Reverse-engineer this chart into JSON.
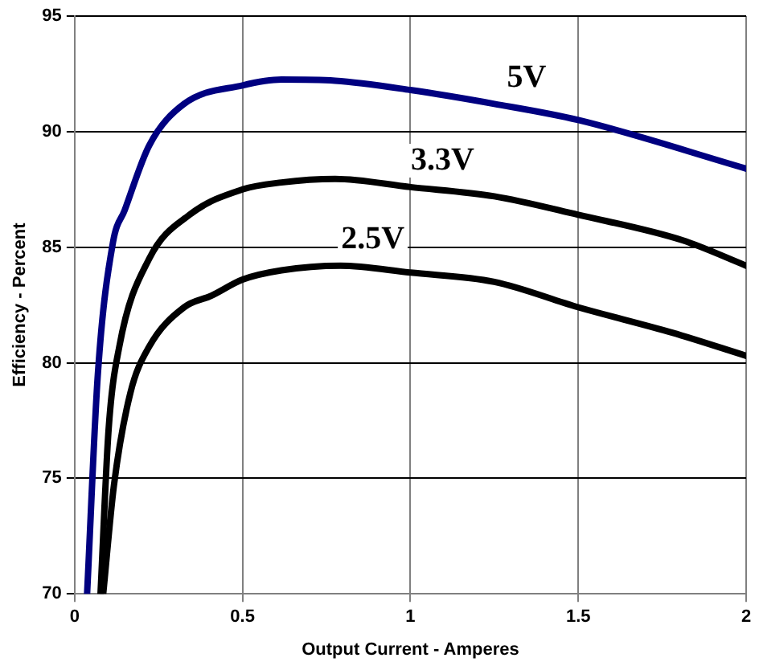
{
  "chart_data": {
    "type": "line",
    "xlabel": "Output Current - Amperes",
    "ylabel": "Efficiency - Percent",
    "xlim": [
      0,
      2
    ],
    "xticks": [
      0,
      0.5,
      1,
      1.5,
      2
    ],
    "ylim": [
      70,
      95
    ],
    "yticks": [
      70,
      75,
      80,
      85,
      90,
      95
    ],
    "grid": true,
    "legend": false,
    "marker": "none",
    "line_style": "solid",
    "series": [
      {
        "name": "5V",
        "color": "#000080",
        "x": [
          0.037,
          0.069,
          0.114,
          0.149,
          0.222,
          0.326,
          0.5,
          0.616,
          0.776,
          1.0,
          1.25,
          1.5,
          2.0
        ],
        "values": [
          70,
          79.5,
          85.2,
          86.6,
          89.4,
          91.2,
          92.0,
          92.25,
          92.2,
          91.8,
          91.2,
          90.5,
          88.4
        ]
      },
      {
        "name": "3.3V",
        "color": "#000000",
        "x": [
          0.077,
          0.101,
          0.133,
          0.222,
          0.342,
          0.5,
          0.616,
          0.776,
          1.0,
          1.25,
          1.5,
          1.81,
          2.0
        ],
        "values": [
          70,
          77.1,
          80.7,
          84.5,
          86.4,
          87.5,
          87.8,
          87.95,
          87.6,
          87.2,
          86.4,
          85.3,
          84.2
        ]
      },
      {
        "name": "2.5V",
        "color": "#000000",
        "x": [
          0.085,
          0.117,
          0.166,
          0.222,
          0.326,
          0.407,
          0.5,
          0.616,
          0.792,
          1.0,
          1.25,
          1.5,
          1.78,
          2.0
        ],
        "values": [
          70,
          74.7,
          78.7,
          80.7,
          82.4,
          82.9,
          83.6,
          84.0,
          84.2,
          83.9,
          83.5,
          82.4,
          81.3,
          80.3
        ]
      }
    ]
  }
}
